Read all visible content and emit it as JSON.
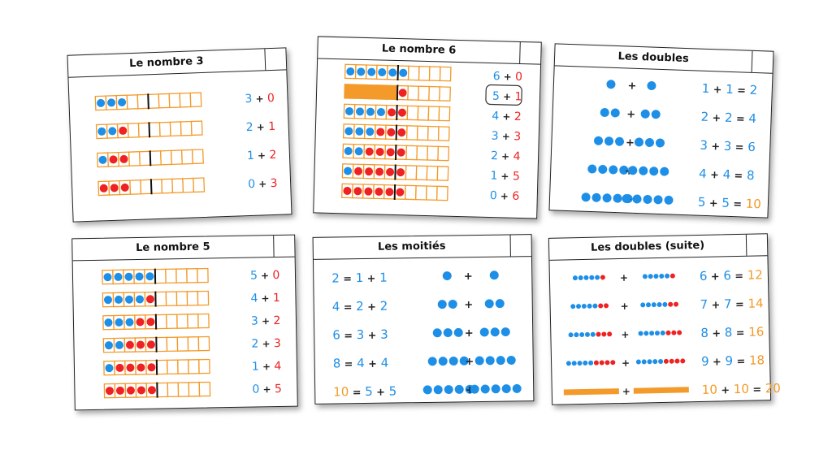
{
  "colors": {
    "blue": "#1e8fe6",
    "red": "#ee2222",
    "orange": "#f39a2a",
    "black": "#222222"
  },
  "cards": [
    {
      "title": "Le nombre 3",
      "frame_cells": 10,
      "rows": [
        {
          "blue": 3,
          "red": 0
        },
        {
          "blue": 2,
          "red": 1
        },
        {
          "blue": 1,
          "red": 2
        },
        {
          "blue": 0,
          "red": 3
        }
      ],
      "equations": [
        [
          {
            "t": "3",
            "c": "blue"
          },
          {
            "t": "+",
            "c": "black"
          },
          {
            "t": "0",
            "c": "red"
          }
        ],
        [
          {
            "t": "2",
            "c": "blue"
          },
          {
            "t": "+",
            "c": "black"
          },
          {
            "t": "1",
            "c": "red"
          }
        ],
        [
          {
            "t": "1",
            "c": "blue"
          },
          {
            "t": "+",
            "c": "black"
          },
          {
            "t": "2",
            "c": "red"
          }
        ],
        [
          {
            "t": "0",
            "c": "blue"
          },
          {
            "t": "+",
            "c": "black"
          },
          {
            "t": "3",
            "c": "red"
          }
        ]
      ]
    },
    {
      "title": "Le nombre 6",
      "frame_cells": 10,
      "rows": [
        {
          "blue": 6,
          "red": 0
        },
        {
          "blue": 0,
          "red": 1,
          "bar": 5
        },
        {
          "blue": 4,
          "red": 2
        },
        {
          "blue": 3,
          "red": 3
        },
        {
          "blue": 2,
          "red": 4
        },
        {
          "blue": 1,
          "red": 5
        },
        {
          "blue": 0,
          "red": 6
        }
      ],
      "equations": [
        [
          {
            "t": "6",
            "c": "blue"
          },
          {
            "t": "+",
            "c": "black"
          },
          {
            "t": "0",
            "c": "red"
          }
        ],
        [
          {
            "t": "5",
            "c": "blue"
          },
          {
            "t": "+",
            "c": "black"
          },
          {
            "t": "1",
            "c": "red"
          }
        ],
        [
          {
            "t": "4",
            "c": "blue"
          },
          {
            "t": "+",
            "c": "black"
          },
          {
            "t": "2",
            "c": "red"
          }
        ],
        [
          {
            "t": "3",
            "c": "blue"
          },
          {
            "t": "+",
            "c": "black"
          },
          {
            "t": "3",
            "c": "red"
          }
        ],
        [
          {
            "t": "2",
            "c": "blue"
          },
          {
            "t": "+",
            "c": "black"
          },
          {
            "t": "4",
            "c": "red"
          }
        ],
        [
          {
            "t": "1",
            "c": "blue"
          },
          {
            "t": "+",
            "c": "black"
          },
          {
            "t": "5",
            "c": "red"
          }
        ],
        [
          {
            "t": "0",
            "c": "blue"
          },
          {
            "t": "+",
            "c": "black"
          },
          {
            "t": "6",
            "c": "red"
          }
        ]
      ],
      "boxed_equation": 1
    },
    {
      "title": "Les doubles",
      "dot_rows": [
        1,
        2,
        3,
        4,
        5
      ],
      "equations": [
        [
          {
            "t": "1",
            "c": "blue"
          },
          {
            "t": "+",
            "c": "black"
          },
          {
            "t": "1",
            "c": "blue"
          },
          {
            "t": "=",
            "c": "black"
          },
          {
            "t": "2",
            "c": "blue"
          }
        ],
        [
          {
            "t": "2",
            "c": "blue"
          },
          {
            "t": "+",
            "c": "black"
          },
          {
            "t": "2",
            "c": "blue"
          },
          {
            "t": "=",
            "c": "black"
          },
          {
            "t": "4",
            "c": "blue"
          }
        ],
        [
          {
            "t": "3",
            "c": "blue"
          },
          {
            "t": "+",
            "c": "black"
          },
          {
            "t": "3",
            "c": "blue"
          },
          {
            "t": "=",
            "c": "black"
          },
          {
            "t": "6",
            "c": "blue"
          }
        ],
        [
          {
            "t": "4",
            "c": "blue"
          },
          {
            "t": "+",
            "c": "black"
          },
          {
            "t": "4",
            "c": "blue"
          },
          {
            "t": "=",
            "c": "black"
          },
          {
            "t": "8",
            "c": "blue"
          }
        ],
        [
          {
            "t": "5",
            "c": "blue"
          },
          {
            "t": "+",
            "c": "black"
          },
          {
            "t": "5",
            "c": "blue"
          },
          {
            "t": "=",
            "c": "black"
          },
          {
            "t": "10",
            "c": "orange10"
          }
        ]
      ]
    },
    {
      "title": "Le nombre 5",
      "frame_cells": 10,
      "rows": [
        {
          "blue": 5,
          "red": 0
        },
        {
          "blue": 4,
          "red": 1
        },
        {
          "blue": 3,
          "red": 2
        },
        {
          "blue": 2,
          "red": 3
        },
        {
          "blue": 1,
          "red": 4
        },
        {
          "blue": 0,
          "red": 5
        }
      ],
      "equations": [
        [
          {
            "t": "5",
            "c": "blue"
          },
          {
            "t": "+",
            "c": "black"
          },
          {
            "t": "0",
            "c": "red"
          }
        ],
        [
          {
            "t": "4",
            "c": "blue"
          },
          {
            "t": "+",
            "c": "black"
          },
          {
            "t": "1",
            "c": "red"
          }
        ],
        [
          {
            "t": "3",
            "c": "blue"
          },
          {
            "t": "+",
            "c": "black"
          },
          {
            "t": "2",
            "c": "red"
          }
        ],
        [
          {
            "t": "2",
            "c": "blue"
          },
          {
            "t": "+",
            "c": "black"
          },
          {
            "t": "3",
            "c": "red"
          }
        ],
        [
          {
            "t": "1",
            "c": "blue"
          },
          {
            "t": "+",
            "c": "black"
          },
          {
            "t": "4",
            "c": "red"
          }
        ],
        [
          {
            "t": "0",
            "c": "blue"
          },
          {
            "t": "+",
            "c": "black"
          },
          {
            "t": "5",
            "c": "red"
          }
        ]
      ]
    },
    {
      "title": "Les moitiés",
      "dot_rows": [
        1,
        2,
        3,
        4,
        5
      ],
      "equations": [
        [
          {
            "t": "2",
            "c": "blue"
          },
          {
            "t": "=",
            "c": "black"
          },
          {
            "t": "1",
            "c": "blue"
          },
          {
            "t": "+",
            "c": "black"
          },
          {
            "t": "1",
            "c": "blue"
          }
        ],
        [
          {
            "t": "4",
            "c": "blue"
          },
          {
            "t": "=",
            "c": "black"
          },
          {
            "t": "2",
            "c": "blue"
          },
          {
            "t": "+",
            "c": "black"
          },
          {
            "t": "2",
            "c": "blue"
          }
        ],
        [
          {
            "t": "6",
            "c": "blue"
          },
          {
            "t": "=",
            "c": "black"
          },
          {
            "t": "3",
            "c": "blue"
          },
          {
            "t": "+",
            "c": "black"
          },
          {
            "t": "3",
            "c": "blue"
          }
        ],
        [
          {
            "t": "8",
            "c": "blue"
          },
          {
            "t": "=",
            "c": "black"
          },
          {
            "t": "4",
            "c": "blue"
          },
          {
            "t": "+",
            "c": "black"
          },
          {
            "t": "4",
            "c": "blue"
          }
        ],
        [
          {
            "t": "10",
            "c": "orange10"
          },
          {
            "t": "=",
            "c": "black"
          },
          {
            "t": "5",
            "c": "blue"
          },
          {
            "t": "+",
            "c": "black"
          },
          {
            "t": "5",
            "c": "blue"
          }
        ]
      ]
    },
    {
      "title": "Les doubles (suite)",
      "bead_rows": [
        6,
        7,
        8,
        9,
        10
      ],
      "equations": [
        [
          {
            "t": "6",
            "c": "blue"
          },
          {
            "t": "+",
            "c": "black"
          },
          {
            "t": "6",
            "c": "blue"
          },
          {
            "t": "=",
            "c": "black"
          },
          {
            "t": "12",
            "c": "orange10"
          }
        ],
        [
          {
            "t": "7",
            "c": "blue"
          },
          {
            "t": "+",
            "c": "black"
          },
          {
            "t": "7",
            "c": "blue"
          },
          {
            "t": "=",
            "c": "black"
          },
          {
            "t": "14",
            "c": "orange10"
          }
        ],
        [
          {
            "t": "8",
            "c": "blue"
          },
          {
            "t": "+",
            "c": "black"
          },
          {
            "t": "8",
            "c": "blue"
          },
          {
            "t": "=",
            "c": "black"
          },
          {
            "t": "16",
            "c": "orange10"
          }
        ],
        [
          {
            "t": "9",
            "c": "blue"
          },
          {
            "t": "+",
            "c": "black"
          },
          {
            "t": "9",
            "c": "blue"
          },
          {
            "t": "=",
            "c": "black"
          },
          {
            "t": "18",
            "c": "orange10"
          }
        ],
        [
          {
            "t": "10",
            "c": "orange10"
          },
          {
            "t": "+",
            "c": "black"
          },
          {
            "t": "10",
            "c": "orange10"
          },
          {
            "t": "=",
            "c": "black"
          },
          {
            "t": "20",
            "c": "orange10"
          }
        ]
      ]
    }
  ]
}
